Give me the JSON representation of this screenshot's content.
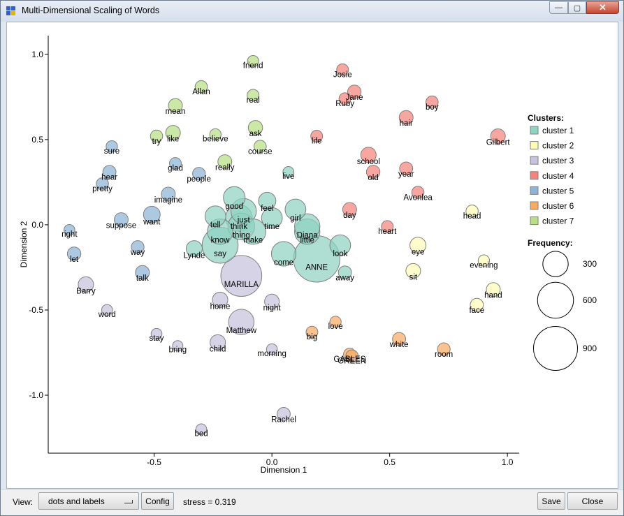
{
  "window": {
    "title": "Multi-Dimensional Scaling of Words"
  },
  "controls": {
    "minimize": "—",
    "maximize": "▢",
    "close": "✕"
  },
  "plot": {
    "xlabel": "Dimension 1",
    "ylabel": "Dimension 2",
    "xlim": [
      -0.95,
      1.05
    ],
    "ylim": [
      -1.34,
      1.11
    ],
    "xticks": [
      "-0.5",
      "0.0",
      "0.5",
      "1.0"
    ],
    "xtick_values": [
      -0.5,
      0,
      0.5,
      1.0
    ],
    "yticks": [
      "-1.0",
      "-0.5",
      "0.0",
      "0.5",
      "1.0"
    ],
    "ytick_values": [
      -1.0,
      -0.5,
      0,
      0.5,
      1.0
    ]
  },
  "legend": {
    "clusters_title": "Clusters:",
    "clusters": [
      {
        "name": "cluster 1",
        "color": "#8fd3c1"
      },
      {
        "name": "cluster 2",
        "color": "#fdfbb6"
      },
      {
        "name": "cluster 3",
        "color": "#c7c2de"
      },
      {
        "name": "cluster 4",
        "color": "#f4837b"
      },
      {
        "name": "cluster 5",
        "color": "#8db3d6"
      },
      {
        "name": "cluster 6",
        "color": "#f7ab63"
      },
      {
        "name": "cluster 7",
        "color": "#b9df85"
      }
    ],
    "frequency_title": "Frequency:",
    "sizes": [
      {
        "label": "300",
        "value": 300
      },
      {
        "label": "600",
        "value": 600
      },
      {
        "label": "900",
        "value": 900
      }
    ]
  },
  "chart_data": {
    "type": "scatter",
    "title": "",
    "xlabel": "Dimension 1",
    "ylabel": "Dimension 2",
    "xlim": [
      -0.95,
      1.05
    ],
    "ylim": [
      -1.34,
      1.11
    ],
    "points": [
      {
        "word": "friend",
        "x": -0.08,
        "y": 0.96,
        "c": 7,
        "f": 60
      },
      {
        "word": "Allan",
        "x": -0.3,
        "y": 0.81,
        "c": 7,
        "f": 70
      },
      {
        "word": "real",
        "x": -0.08,
        "y": 0.76,
        "c": 7,
        "f": 65
      },
      {
        "word": "mean",
        "x": -0.41,
        "y": 0.7,
        "c": 7,
        "f": 90
      },
      {
        "word": "ask",
        "x": -0.07,
        "y": 0.57,
        "c": 7,
        "f": 95
      },
      {
        "word": "like",
        "x": -0.42,
        "y": 0.54,
        "c": 7,
        "f": 100
      },
      {
        "word": "believe",
        "x": -0.24,
        "y": 0.53,
        "c": 7,
        "f": 60
      },
      {
        "word": "try",
        "x": -0.49,
        "y": 0.52,
        "c": 7,
        "f": 70
      },
      {
        "word": "course",
        "x": -0.05,
        "y": 0.46,
        "c": 7,
        "f": 70
      },
      {
        "word": "really",
        "x": -0.2,
        "y": 0.37,
        "c": 7,
        "f": 90
      },
      {
        "word": "Josie",
        "x": 0.3,
        "y": 0.91,
        "c": 4,
        "f": 65
      },
      {
        "word": "Jane",
        "x": 0.35,
        "y": 0.78,
        "c": 4,
        "f": 85
      },
      {
        "word": "Ruby",
        "x": 0.31,
        "y": 0.74,
        "c": 4,
        "f": 65
      },
      {
        "word": "boy",
        "x": 0.68,
        "y": 0.72,
        "c": 4,
        "f": 70
      },
      {
        "word": "hair",
        "x": 0.57,
        "y": 0.63,
        "c": 4,
        "f": 90
      },
      {
        "word": "Gilbert",
        "x": 0.96,
        "y": 0.52,
        "c": 4,
        "f": 100
      },
      {
        "word": "life",
        "x": 0.19,
        "y": 0.52,
        "c": 4,
        "f": 65
      },
      {
        "word": "school",
        "x": 0.41,
        "y": 0.41,
        "c": 4,
        "f": 110
      },
      {
        "word": "old",
        "x": 0.43,
        "y": 0.31,
        "c": 4,
        "f": 85
      },
      {
        "word": "year",
        "x": 0.57,
        "y": 0.33,
        "c": 4,
        "f": 80
      },
      {
        "word": "Avonlea",
        "x": 0.62,
        "y": 0.19,
        "c": 4,
        "f": 70
      },
      {
        "word": "day",
        "x": 0.33,
        "y": 0.09,
        "c": 4,
        "f": 90
      },
      {
        "word": "heart",
        "x": 0.49,
        "y": -0.01,
        "c": 4,
        "f": 65
      },
      {
        "word": "sure",
        "x": -0.68,
        "y": 0.46,
        "c": 5,
        "f": 60
      },
      {
        "word": "hear",
        "x": -0.69,
        "y": 0.31,
        "c": 5,
        "f": 80
      },
      {
        "word": "glad",
        "x": -0.41,
        "y": 0.36,
        "c": 5,
        "f": 65
      },
      {
        "word": "people",
        "x": -0.31,
        "y": 0.3,
        "c": 5,
        "f": 75
      },
      {
        "word": "pretty",
        "x": -0.72,
        "y": 0.24,
        "c": 5,
        "f": 70
      },
      {
        "word": "imagine",
        "x": -0.44,
        "y": 0.18,
        "c": 5,
        "f": 90
      },
      {
        "word": "want",
        "x": -0.51,
        "y": 0.06,
        "c": 5,
        "f": 130
      },
      {
        "word": "suppose",
        "x": -0.64,
        "y": 0.03,
        "c": 5,
        "f": 90
      },
      {
        "word": "right",
        "x": -0.86,
        "y": -0.03,
        "c": 5,
        "f": 55
      },
      {
        "word": "way",
        "x": -0.57,
        "y": -0.13,
        "c": 5,
        "f": 75
      },
      {
        "word": "let",
        "x": -0.84,
        "y": -0.17,
        "c": 5,
        "f": 85
      },
      {
        "word": "talk",
        "x": -0.55,
        "y": -0.28,
        "c": 5,
        "f": 90
      },
      {
        "word": "Barry",
        "x": -0.79,
        "y": -0.35,
        "c": 3,
        "f": 110
      },
      {
        "word": "MARILLA",
        "x": -0.13,
        "y": -0.3,
        "c": 3,
        "f": 780
      },
      {
        "word": "home",
        "x": -0.22,
        "y": -0.44,
        "c": 3,
        "f": 110
      },
      {
        "word": "night",
        "x": 0.0,
        "y": -0.45,
        "c": 3,
        "f": 100
      },
      {
        "word": "word",
        "x": -0.7,
        "y": -0.5,
        "c": 3,
        "f": 55
      },
      {
        "word": "Matthew",
        "x": -0.13,
        "y": -0.57,
        "c": 3,
        "f": 300
      },
      {
        "word": "stay",
        "x": -0.49,
        "y": -0.64,
        "c": 3,
        "f": 55
      },
      {
        "word": "bring",
        "x": -0.4,
        "y": -0.71,
        "c": 3,
        "f": 50
      },
      {
        "word": "child",
        "x": -0.23,
        "y": -0.69,
        "c": 3,
        "f": 110
      },
      {
        "word": "morning",
        "x": 0.0,
        "y": -0.73,
        "c": 3,
        "f": 55
      },
      {
        "word": "Rachel",
        "x": 0.05,
        "y": -1.11,
        "c": 3,
        "f": 80
      },
      {
        "word": "bed",
        "x": -0.3,
        "y": -1.2,
        "c": 3,
        "f": 55
      },
      {
        "word": "good",
        "x": -0.16,
        "y": 0.16,
        "c": 1,
        "f": 220
      },
      {
        "word": "feel",
        "x": -0.02,
        "y": 0.14,
        "c": 1,
        "f": 140
      },
      {
        "word": "live",
        "x": 0.07,
        "y": 0.31,
        "c": 1,
        "f": 55
      },
      {
        "word": "just",
        "x": -0.12,
        "y": 0.08,
        "c": 1,
        "f": 300
      },
      {
        "word": "think",
        "x": -0.14,
        "y": 0.04,
        "c": 1,
        "f": 330
      },
      {
        "word": "tell",
        "x": -0.24,
        "y": 0.05,
        "c": 1,
        "f": 200
      },
      {
        "word": "time",
        "x": 0.0,
        "y": 0.04,
        "c": 1,
        "f": 200
      },
      {
        "word": "girl",
        "x": 0.1,
        "y": 0.09,
        "c": 1,
        "f": 200
      },
      {
        "word": "thing",
        "x": -0.13,
        "y": -0.01,
        "c": 1,
        "f": 330
      },
      {
        "word": "know",
        "x": -0.22,
        "y": -0.04,
        "c": 1,
        "f": 300
      },
      {
        "word": "make",
        "x": -0.08,
        "y": -0.04,
        "c": 1,
        "f": 300
      },
      {
        "word": "little",
        "x": 0.15,
        "y": -0.04,
        "c": 1,
        "f": 300
      },
      {
        "word": "Diana",
        "x": 0.15,
        "y": -0.01,
        "c": 1,
        "f": 300
      },
      {
        "word": "say",
        "x": -0.22,
        "y": -0.12,
        "c": 1,
        "f": 600
      },
      {
        "word": "come",
        "x": 0.05,
        "y": -0.17,
        "c": 1,
        "f": 280
      },
      {
        "word": "ANNE",
        "x": 0.19,
        "y": -0.2,
        "c": 1,
        "f": 1000
      },
      {
        "word": "look",
        "x": 0.29,
        "y": -0.12,
        "c": 1,
        "f": 200
      },
      {
        "word": "Lynde",
        "x": -0.33,
        "y": -0.14,
        "c": 1,
        "f": 120
      },
      {
        "word": "away",
        "x": 0.31,
        "y": -0.28,
        "c": 1,
        "f": 80
      },
      {
        "word": "head",
        "x": 0.85,
        "y": 0.08,
        "c": 2,
        "f": 70
      },
      {
        "word": "eye",
        "x": 0.62,
        "y": -0.12,
        "c": 2,
        "f": 120
      },
      {
        "word": "evening",
        "x": 0.9,
        "y": -0.21,
        "c": 2,
        "f": 60
      },
      {
        "word": "sit",
        "x": 0.6,
        "y": -0.27,
        "c": 2,
        "f": 100
      },
      {
        "word": "hand",
        "x": 0.94,
        "y": -0.38,
        "c": 2,
        "f": 90
      },
      {
        "word": "face",
        "x": 0.87,
        "y": -0.47,
        "c": 2,
        "f": 80
      },
      {
        "word": "big",
        "x": 0.17,
        "y": -0.63,
        "c": 6,
        "f": 65
      },
      {
        "word": "love",
        "x": 0.27,
        "y": -0.57,
        "c": 6,
        "f": 60
      },
      {
        "word": "white",
        "x": 0.54,
        "y": -0.67,
        "c": 6,
        "f": 80
      },
      {
        "word": "room",
        "x": 0.73,
        "y": -0.73,
        "c": 6,
        "f": 75
      },
      {
        "word": "GABLES",
        "x": 0.33,
        "y": -0.76,
        "c": 6,
        "f": 70
      },
      {
        "word": "GREEN",
        "x": 0.34,
        "y": -0.77,
        "c": 6,
        "f": 70
      }
    ]
  },
  "bottom": {
    "view_label": "View:",
    "view_value": "dots and labels",
    "config_label": "Config",
    "stress_text": "stress = 0.319",
    "save_label": "Save",
    "close_label": "Close"
  }
}
